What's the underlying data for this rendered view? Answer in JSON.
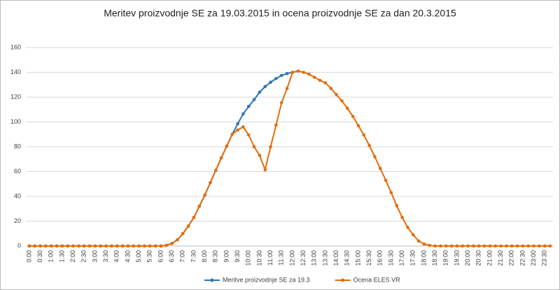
{
  "chart_data": {
    "type": "line",
    "title": "Meritev proizvodnje SE za 19.03.2015 in ocena proizvodnje SE za dan 20.3.2015",
    "categories": [
      "0:00",
      null,
      "0:30",
      null,
      "1:00",
      null,
      "1:30",
      null,
      "2:00",
      null,
      "2:30",
      null,
      "3:00",
      null,
      "3:30",
      null,
      "4:00",
      null,
      "4:30",
      null,
      "5:00",
      null,
      "5:30",
      null,
      "6:00",
      null,
      "6:30",
      null,
      "7:00",
      null,
      "7:30",
      null,
      "8:00",
      null,
      "8:30",
      null,
      "9:00",
      null,
      "9:30",
      null,
      "10:00",
      null,
      "10:30",
      null,
      "11:00",
      null,
      "11:30",
      null,
      "12:00",
      null,
      "12:30",
      null,
      "13:00",
      null,
      "13:30",
      null,
      "14:00",
      null,
      "14:30",
      null,
      "15:00",
      null,
      "15:30",
      null,
      "16:00",
      null,
      "16:30",
      null,
      "17:00",
      null,
      "17:30",
      null,
      "18:00",
      null,
      "18:30",
      null,
      "19:00",
      null,
      "19:30",
      null,
      "20:00",
      null,
      "20:30",
      null,
      "21:00",
      null,
      "21:30",
      null,
      "22:00",
      null,
      "22:30",
      null,
      "23:00",
      null,
      "23:30",
      null
    ],
    "series": [
      {
        "name": "Meritve proizvodnje SE za 19.3",
        "color": "#2e75b6",
        "values": [
          0,
          0,
          0,
          0,
          0,
          0,
          0,
          0,
          0,
          0,
          0,
          0,
          0,
          0,
          0,
          0,
          0,
          0,
          0,
          0,
          0,
          0,
          0,
          0,
          0,
          0.5,
          2,
          5,
          10,
          16,
          23,
          32,
          41,
          51,
          61,
          71,
          80.5,
          90,
          98.5,
          106.5,
          112.5,
          118,
          124,
          128.5,
          132,
          135,
          137.5,
          139,
          140,
          null,
          null,
          null,
          null,
          null,
          null,
          null,
          null,
          null,
          null,
          null,
          null,
          null,
          null,
          null,
          null,
          null,
          null,
          null,
          null,
          null,
          null,
          null,
          null,
          null,
          null,
          null,
          null,
          null,
          null,
          null,
          null,
          null,
          null,
          null,
          null,
          null,
          null,
          null,
          null,
          null,
          null,
          null,
          null,
          null,
          null,
          null
        ]
      },
      {
        "name": "Ocena ELES VR",
        "color": "#e46c0a",
        "values": [
          0,
          0,
          0,
          0,
          0,
          0,
          0,
          0,
          0,
          0,
          0,
          0,
          0,
          0,
          0,
          0,
          0,
          0,
          0,
          0,
          0,
          0,
          0,
          0,
          0,
          0.5,
          2,
          5,
          10,
          16,
          23,
          32,
          41,
          51,
          61,
          71,
          80.5,
          90,
          93.5,
          96,
          89.5,
          80,
          73,
          61.5,
          80,
          97.5,
          115.5,
          127,
          140,
          141,
          140,
          138.5,
          136,
          133.5,
          131.5,
          127,
          122,
          117,
          111,
          104.5,
          97,
          89.5,
          81,
          72,
          62.5,
          53,
          43,
          32.5,
          23,
          15,
          9,
          4,
          1.5,
          0.5,
          0,
          0,
          0,
          0,
          0,
          0,
          0,
          0,
          0,
          0,
          0,
          0,
          0,
          0,
          0,
          0,
          0,
          0,
          0,
          0,
          0,
          0
        ]
      }
    ],
    "ylim": [
      0,
      160
    ],
    "yticks": [
      0,
      20,
      40,
      60,
      80,
      100,
      120,
      140,
      160
    ],
    "grid": true,
    "legend": "bottom"
  }
}
